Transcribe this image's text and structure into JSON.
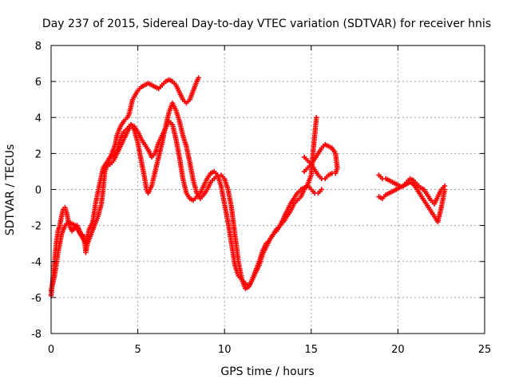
{
  "chart_data": {
    "type": "scatter",
    "title": "Day 237 of 2015, Sidereal Day-to-day VTEC variation (SDTVAR) for receiver hnis",
    "xlabel": "GPS time / hours",
    "ylabel": "SDTVAR / TECUs",
    "xlim": [
      0,
      25
    ],
    "ylim": [
      -8,
      8
    ],
    "xticks": [
      0,
      5,
      10,
      15,
      20,
      25
    ],
    "yticks": [
      -8,
      -6,
      -4,
      -2,
      0,
      2,
      4,
      6,
      8
    ],
    "grid": true,
    "marker": "+",
    "color": "#ff0000",
    "series": [
      {
        "points": [
          [
            0.0,
            -5.9
          ],
          [
            0.1,
            -5.0
          ],
          [
            0.2,
            -4.0
          ],
          [
            0.3,
            -3.0
          ],
          [
            0.4,
            -2.3
          ],
          [
            0.5,
            -2.0
          ],
          [
            0.6,
            -1.5
          ],
          [
            0.7,
            -1.1
          ],
          [
            0.8,
            -1.0
          ],
          [
            0.9,
            -1.3
          ],
          [
            1.0,
            -1.8
          ],
          [
            1.1,
            -2.1
          ],
          [
            1.2,
            -2.3
          ],
          [
            1.5,
            -2.0
          ],
          [
            1.7,
            -2.4
          ],
          [
            1.9,
            -2.6
          ],
          [
            2.0,
            -3.5
          ],
          [
            2.1,
            -3.0
          ],
          [
            2.3,
            -2.5
          ],
          [
            2.5,
            -2.0
          ],
          [
            2.7,
            -1.5
          ],
          [
            2.9,
            -0.8
          ],
          [
            3.0,
            0.0
          ],
          [
            3.1,
            1.0
          ],
          [
            3.3,
            1.5
          ],
          [
            3.5,
            2.0
          ],
          [
            3.7,
            2.5
          ],
          [
            3.8,
            3.0
          ],
          [
            4.0,
            3.5
          ],
          [
            4.2,
            3.8
          ],
          [
            4.4,
            4.0
          ],
          [
            4.5,
            4.2
          ],
          [
            4.6,
            4.6
          ],
          [
            4.7,
            5.0
          ],
          [
            5.0,
            5.5
          ],
          [
            5.2,
            5.7
          ],
          [
            5.4,
            5.8
          ],
          [
            5.6,
            5.9
          ],
          [
            6.2,
            5.6
          ],
          [
            6.4,
            5.8
          ],
          [
            6.6,
            6.0
          ],
          [
            6.8,
            6.1
          ],
          [
            7.0,
            6.0
          ],
          [
            7.2,
            5.8
          ],
          [
            7.4,
            5.4
          ],
          [
            7.6,
            5.0
          ],
          [
            7.8,
            4.8
          ],
          [
            8.0,
            5.0
          ],
          [
            8.2,
            5.5
          ],
          [
            8.4,
            6.0
          ],
          [
            8.5,
            6.2
          ]
        ]
      },
      {
        "points": [
          [
            0.0,
            -5.6
          ],
          [
            0.2,
            -4.8
          ],
          [
            0.4,
            -3.5
          ],
          [
            0.6,
            -2.5
          ],
          [
            0.8,
            -2.0
          ],
          [
            1.0,
            -1.8
          ],
          [
            1.2,
            -1.9
          ],
          [
            1.4,
            -2.0
          ],
          [
            2.0,
            -3.0
          ],
          [
            2.2,
            -2.2
          ],
          [
            2.4,
            -1.8
          ],
          [
            2.6,
            -0.6
          ],
          [
            2.8,
            0.3
          ],
          [
            3.0,
            1.2
          ],
          [
            3.2,
            1.5
          ],
          [
            3.4,
            1.4
          ],
          [
            3.6,
            1.6
          ],
          [
            3.8,
            2.0
          ],
          [
            4.0,
            2.4
          ],
          [
            4.2,
            2.8
          ],
          [
            4.4,
            3.2
          ],
          [
            4.6,
            3.6
          ],
          [
            4.8,
            3.3
          ],
          [
            5.0,
            2.6
          ],
          [
            5.2,
            1.6
          ],
          [
            5.4,
            0.6
          ],
          [
            5.5,
            0.0
          ],
          [
            5.6,
            -0.2
          ],
          [
            5.8,
            0.2
          ],
          [
            6.0,
            1.0
          ],
          [
            6.2,
            1.8
          ],
          [
            6.4,
            2.6
          ],
          [
            6.6,
            3.5
          ],
          [
            6.8,
            4.3
          ],
          [
            7.0,
            4.8
          ],
          [
            7.2,
            4.4
          ],
          [
            7.4,
            3.8
          ],
          [
            7.6,
            3.0
          ],
          [
            7.8,
            2.4
          ],
          [
            8.0,
            1.5
          ],
          [
            8.2,
            0.5
          ],
          [
            8.4,
            -0.2
          ],
          [
            8.6,
            -0.5
          ],
          [
            8.8,
            -0.3
          ],
          [
            9.0,
            0.0
          ],
          [
            9.2,
            0.4
          ],
          [
            9.4,
            0.6
          ],
          [
            9.6,
            0.8
          ],
          [
            9.8,
            0.8
          ],
          [
            10.0,
            0.6
          ],
          [
            10.2,
            0.0
          ],
          [
            10.4,
            -1.0
          ],
          [
            10.6,
            -2.5
          ],
          [
            10.8,
            -4.0
          ],
          [
            11.0,
            -5.0
          ],
          [
            11.2,
            -5.5
          ],
          [
            11.4,
            -5.4
          ],
          [
            11.6,
            -5.0
          ],
          [
            11.8,
            -4.5
          ],
          [
            12.0,
            -4.0
          ],
          [
            12.2,
            -3.4
          ],
          [
            12.4,
            -3.0
          ],
          [
            12.6,
            -2.8
          ],
          [
            12.8,
            -2.5
          ],
          [
            13.0,
            -2.2
          ],
          [
            13.2,
            -2.0
          ],
          [
            13.4,
            -1.8
          ],
          [
            13.6,
            -1.5
          ],
          [
            13.8,
            -1.2
          ],
          [
            14.0,
            -0.8
          ],
          [
            14.2,
            -0.6
          ],
          [
            14.4,
            -0.4
          ],
          [
            14.6,
            0.0
          ],
          [
            14.8,
            0.3
          ],
          [
            15.0,
            0.8
          ],
          [
            15.1,
            2.0
          ],
          [
            15.2,
            3.0
          ],
          [
            15.3,
            4.0
          ]
        ]
      },
      {
        "points": [
          [
            3.0,
            1.0
          ],
          [
            3.2,
            1.5
          ],
          [
            3.4,
            1.8
          ],
          [
            3.6,
            1.9
          ],
          [
            3.8,
            2.2
          ],
          [
            4.0,
            2.8
          ],
          [
            4.2,
            3.2
          ],
          [
            4.4,
            3.4
          ],
          [
            4.6,
            3.6
          ],
          [
            4.8,
            3.5
          ],
          [
            5.0,
            3.2
          ],
          [
            5.2,
            2.8
          ],
          [
            5.4,
            2.5
          ],
          [
            5.6,
            2.2
          ],
          [
            5.8,
            1.8
          ],
          [
            6.0,
            2.0
          ],
          [
            6.2,
            2.6
          ],
          [
            6.4,
            3.0
          ],
          [
            6.6,
            3.4
          ],
          [
            6.8,
            3.8
          ],
          [
            7.0,
            3.6
          ],
          [
            7.2,
            2.8
          ],
          [
            7.4,
            1.8
          ],
          [
            7.6,
            0.6
          ],
          [
            7.8,
            -0.2
          ],
          [
            8.0,
            -0.5
          ],
          [
            8.2,
            -0.6
          ],
          [
            8.4,
            -0.4
          ],
          [
            8.6,
            -0.2
          ],
          [
            8.8,
            0.2
          ],
          [
            9.0,
            0.6
          ],
          [
            9.2,
            0.9
          ],
          [
            9.4,
            1.0
          ],
          [
            9.6,
            0.8
          ],
          [
            9.8,
            0.2
          ],
          [
            10.0,
            -0.8
          ],
          [
            10.2,
            -1.8
          ],
          [
            10.4,
            -3.0
          ],
          [
            10.6,
            -4.2
          ],
          [
            10.8,
            -4.8
          ],
          [
            11.0,
            -5.0
          ],
          [
            11.2,
            -5.2
          ],
          [
            11.4,
            -5.4
          ],
          [
            11.6,
            -5.0
          ],
          [
            11.8,
            -4.6
          ],
          [
            12.0,
            -4.2
          ],
          [
            12.2,
            -3.6
          ],
          [
            12.4,
            -3.2
          ],
          [
            12.6,
            -2.8
          ],
          [
            12.8,
            -2.5
          ],
          [
            13.0,
            -2.3
          ],
          [
            13.2,
            -2.0
          ],
          [
            13.4,
            -1.6
          ],
          [
            13.6,
            -1.2
          ],
          [
            13.8,
            -0.8
          ],
          [
            14.0,
            -0.5
          ],
          [
            14.2,
            -0.2
          ],
          [
            14.4,
            0.0
          ],
          [
            14.6,
            0.1
          ],
          [
            14.8,
            0.2
          ],
          [
            15.0,
            0.0
          ],
          [
            15.2,
            -0.2
          ],
          [
            15.4,
            -0.2
          ],
          [
            15.6,
            0.0
          ]
        ]
      },
      {
        "points": [
          [
            14.6,
            1.0
          ],
          [
            14.8,
            1.2
          ],
          [
            15.0,
            1.4
          ],
          [
            15.2,
            1.7
          ],
          [
            15.4,
            2.0
          ],
          [
            15.6,
            2.3
          ],
          [
            15.8,
            2.5
          ],
          [
            16.0,
            2.4
          ],
          [
            16.2,
            2.3
          ],
          [
            16.4,
            2.0
          ],
          [
            16.5,
            1.2
          ],
          [
            16.4,
            0.9
          ],
          [
            16.2,
            0.9
          ],
          [
            16.0,
            0.8
          ],
          [
            15.8,
            0.6
          ],
          [
            15.6,
            0.6
          ],
          [
            15.4,
            0.8
          ],
          [
            15.2,
            1.1
          ],
          [
            15.0,
            1.4
          ],
          [
            14.8,
            1.6
          ],
          [
            14.6,
            1.8
          ]
        ]
      },
      {
        "points": [
          [
            18.9,
            0.8
          ],
          [
            19.1,
            0.6
          ],
          [
            19.3,
            0.6
          ],
          [
            19.5,
            0.5
          ],
          [
            19.7,
            0.4
          ],
          [
            19.9,
            0.3
          ],
          [
            20.1,
            0.2
          ],
          [
            20.3,
            0.2
          ],
          [
            20.5,
            0.4
          ],
          [
            20.7,
            0.6
          ],
          [
            20.9,
            0.5
          ],
          [
            21.1,
            0.3
          ],
          [
            21.3,
            0.1
          ],
          [
            21.5,
            0.0
          ],
          [
            21.7,
            -0.3
          ],
          [
            21.9,
            -0.6
          ],
          [
            22.1,
            -0.8
          ],
          [
            22.3,
            -0.4
          ],
          [
            22.5,
            0.0
          ],
          [
            22.7,
            0.2
          ]
        ]
      },
      {
        "points": [
          [
            18.9,
            -0.4
          ],
          [
            19.1,
            -0.5
          ],
          [
            19.3,
            -0.3
          ],
          [
            19.5,
            -0.2
          ],
          [
            19.7,
            -0.1
          ],
          [
            19.9,
            0.0
          ],
          [
            20.1,
            0.1
          ],
          [
            20.3,
            0.2
          ],
          [
            20.5,
            0.3
          ],
          [
            20.7,
            0.4
          ],
          [
            20.9,
            0.3
          ],
          [
            21.1,
            0.0
          ],
          [
            21.3,
            -0.3
          ],
          [
            21.5,
            -0.6
          ],
          [
            21.7,
            -0.9
          ],
          [
            21.9,
            -1.2
          ],
          [
            22.1,
            -1.5
          ],
          [
            22.3,
            -1.8
          ],
          [
            22.4,
            -1.4
          ],
          [
            22.5,
            -1.0
          ],
          [
            22.6,
            -0.5
          ],
          [
            22.7,
            0.0
          ]
        ]
      }
    ]
  }
}
